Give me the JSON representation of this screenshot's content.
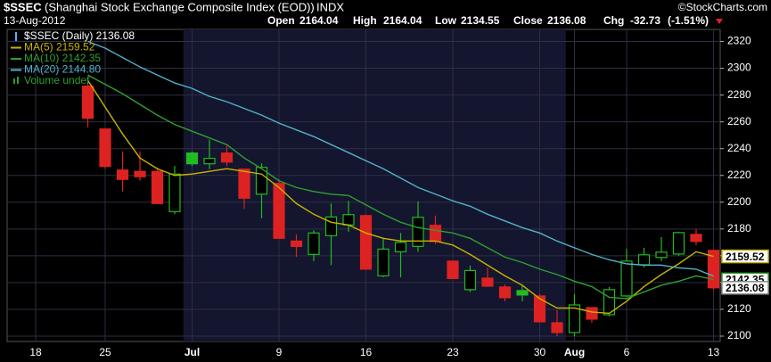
{
  "header": {
    "symbol": "$SSEC",
    "name": "(Shanghai Stock Exchange Composite Index (EOD))",
    "exchange": "INDX",
    "source": "©StockCharts.com",
    "date": "13-Aug-2012",
    "open_label": "Open",
    "open": 2164.04,
    "high_label": "High",
    "high": 2164.04,
    "low_label": "Low",
    "low": 2134.55,
    "close_label": "Close",
    "close": 2136.08,
    "chg_label": "Chg",
    "chg": -32.73,
    "chg_pct": "(-1.51%)"
  },
  "chart_data": {
    "type": "candlestick",
    "categories": [
      "18",
      null,
      null,
      null,
      "25",
      null,
      null,
      null,
      null,
      "Jul",
      null,
      null,
      null,
      null,
      "9",
      null,
      null,
      null,
      null,
      "16",
      null,
      null,
      null,
      null,
      "23",
      null,
      null,
      null,
      null,
      "30",
      null,
      "Aug",
      null,
      null,
      "6",
      null,
      null,
      null,
      null,
      "13"
    ],
    "ylim": [
      2096,
      2329
    ],
    "yticks": [
      2100,
      2120,
      2140,
      2160,
      2180,
      2200,
      2220,
      2240,
      2260,
      2280,
      2300,
      2320
    ],
    "grid": true,
    "series": [
      {
        "name": "$SSEC (Daily) 2136.08",
        "type": "candlestick",
        "color": "#ffffff",
        "open": [
          null,
          null,
          null,
          2286.7,
          2254.7,
          2224,
          2223,
          2223,
          2193,
          2236.7,
          2228.7,
          2236.7,
          2224.7,
          2206,
          2214,
          2171,
          2161,
          2175,
          2183,
          2190,
          2145,
          2163,
          2167,
          2182.7,
          2156,
          2134.7,
          2143.3,
          2136.7,
          2134,
          2130,
          2110,
          2102.7,
          2121.3,
          2116,
          2130,
          2153.3,
          2158.7,
          2161.3,
          2176,
          2164.04
        ],
        "high": [
          null,
          null,
          null,
          2292,
          2255,
          2238,
          2238,
          2226,
          2227,
          2238,
          2246.7,
          2242,
          2224.7,
          2229,
          2217,
          2176,
          2179,
          2199,
          2201,
          2191,
          2173,
          2177,
          2200.7,
          2190,
          2156,
          2152.7,
          2151,
          2138.7,
          2138,
          2131.3,
          2119.3,
          2131.3,
          2121.3,
          2136.7,
          2165.3,
          2166,
          2174,
          2178,
          2180,
          2164.04
        ],
        "low": [
          null,
          null,
          null,
          2256,
          2225,
          2208,
          2216,
          2199,
          2191,
          2227,
          2224.7,
          2227,
          2195,
          2188,
          2173,
          2159,
          2156,
          2153,
          2178,
          2150,
          2144,
          2144,
          2163,
          2168.7,
          2143,
          2133,
          2136.7,
          2126,
          2126,
          2110.7,
          2100,
          2100,
          2110,
          2114.7,
          2129.3,
          2151.3,
          2156,
          2160,
          2168,
          2134.55
        ],
        "close": [
          null,
          null,
          null,
          2262.7,
          2226.7,
          2217,
          2219,
          2199,
          2221,
          2228.7,
          2232.7,
          2230,
          2203,
          2226,
          2173,
          2167,
          2177,
          2189,
          2190.7,
          2150,
          2165,
          2170,
          2188.7,
          2170.7,
          2143,
          2149,
          2137.3,
          2128.7,
          2130.7,
          2110.7,
          2102.7,
          2123.3,
          2112.7,
          2134.7,
          2156,
          2160.7,
          2162.7,
          2177.3,
          2170.7,
          2136.08
        ],
        "candle_colors": [
          null,
          null,
          null,
          "#dd2222",
          "#dd2222",
          "#dd2222",
          "#dd2222",
          "#dd2222",
          "#22bb22",
          "#22bb22",
          "#22bb22",
          "#dd2222",
          "#dd2222",
          "#22bb22",
          "#dd2222",
          "#dd2222",
          "#22bb22",
          "#22bb22",
          "#22bb22",
          "#dd2222",
          "#22bb22",
          "#22bb22",
          "#22bb22",
          "#dd2222",
          "#dd2222",
          "#22bb22",
          "#dd2222",
          "#dd2222",
          "#22bb22",
          "#dd2222",
          "#dd2222",
          "#22bb22",
          "#dd2222",
          "#22bb22",
          "#22bb22",
          "#22bb22",
          "#22bb22",
          "#22bb22",
          "#dd2222",
          "#dd2222"
        ],
        "tag_label": "2136.08"
      },
      {
        "name": "MA(5) 2159.52",
        "type": "line",
        "color": "#c8b400",
        "values": [
          null,
          null,
          null,
          2291,
          2271,
          2251,
          2233,
          2225,
          2220,
          2221,
          2223,
          2225,
          2223,
          2221,
          2211,
          2199,
          2191,
          2185,
          2183,
          2177,
          2173,
          2171,
          2171,
          2171,
          2168,
          2161,
          2153,
          2145,
          2138,
          2128,
          2121,
          2121,
          2118,
          2117,
          2126,
          2137,
          2146,
          2154,
          2163,
          2159.52
        ],
        "tag_label": "2159.52"
      },
      {
        "name": "MA(10) 2142.35",
        "type": "line",
        "color": "#2ea02e",
        "values": [
          null,
          null,
          null,
          2295,
          2288,
          2281,
          2273,
          2265,
          2258,
          2253,
          2248,
          2243,
          2233,
          2225,
          2216,
          2211,
          2208,
          2206,
          2205,
          2198,
          2191,
          2185,
          2181,
          2179,
          2177,
          2173,
          2166,
          2159,
          2155,
          2150,
          2146,
          2141,
          2137,
          2129,
          2128,
          2133,
          2138,
          2141,
          2145,
          2142.35
        ],
        "tag_label": "2142.35"
      },
      {
        "name": "MA(20) 2144.80",
        "type": "line",
        "color": "#4fb3c8",
        "values": [
          null,
          null,
          null,
          2320,
          2315,
          2308,
          2301,
          2295,
          2289,
          2285,
          2279,
          2275,
          2270,
          2265,
          2259,
          2254,
          2249,
          2243,
          2237,
          2231,
          2225,
          2218,
          2211,
          2206,
          2201,
          2197,
          2191,
          2186,
          2181,
          2177,
          2171,
          2166,
          2161,
          2157,
          2154,
          2153,
          2153,
          2151,
          2150,
          2144.8
        ]
      },
      {
        "name": "Volume undef",
        "type": "volume",
        "color": "#2ea02e"
      }
    ]
  }
}
